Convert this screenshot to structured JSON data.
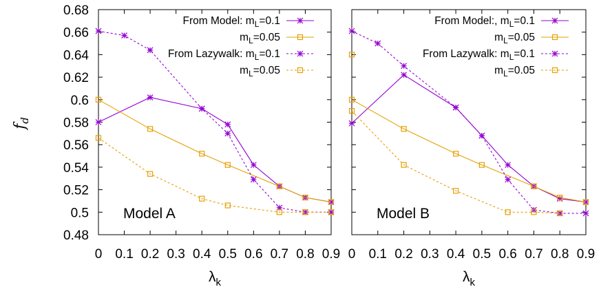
{
  "chart_data": [
    {
      "type": "line",
      "panel_label": "Model A",
      "xlabel": "λk",
      "ylabel": "f_d",
      "xlim": [
        0,
        0.9
      ],
      "ylim": [
        0.48,
        0.68
      ],
      "xticks": [
        "0",
        "0.1",
        "0.2",
        "0.3",
        "0.4",
        "0.5",
        "0.6",
        "0.7",
        "0.8",
        "0.9"
      ],
      "yticks": [
        "0.48",
        "0.5",
        "0.52",
        "0.54",
        "0.56",
        "0.58",
        "0.6",
        "0.62",
        "0.64",
        "0.66",
        "0.68"
      ],
      "grid": false,
      "legend_position": "top-right",
      "series": [
        {
          "name": "From Model: mL=0.1",
          "color": "#9400d3",
          "marker": "star",
          "dash": false,
          "x": [
            0,
            0.2,
            0.4,
            0.5,
            0.6,
            0.7,
            0.8,
            0.9
          ],
          "y": [
            0.58,
            0.602,
            0.592,
            0.578,
            0.542,
            0.523,
            0.513,
            0.509
          ]
        },
        {
          "name": "mL=0.05",
          "color": "#e69f00",
          "marker": "square",
          "dash": false,
          "x": [
            0,
            0.2,
            0.4,
            0.5,
            0.7,
            0.8,
            0.9
          ],
          "y": [
            0.6,
            0.574,
            0.552,
            0.542,
            0.523,
            0.513,
            0.509
          ]
        },
        {
          "name": "From Lazywalk: mL=0.1",
          "color": "#9400d3",
          "marker": "star",
          "dash": true,
          "x": [
            0,
            0.1,
            0.2,
            0.4,
            0.5,
            0.6,
            0.7,
            0.8,
            0.9
          ],
          "y": [
            0.661,
            0.657,
            0.644,
            0.592,
            0.57,
            0.529,
            0.504,
            0.5,
            0.5
          ]
        },
        {
          "name": "mL=0.05",
          "color": "#e69f00",
          "marker": "square",
          "dash": true,
          "x": [
            0,
            0.2,
            0.4,
            0.5,
            0.7,
            0.8,
            0.9
          ],
          "y": [
            0.566,
            0.534,
            0.512,
            0.506,
            0.5,
            0.5,
            0.5
          ]
        }
      ]
    },
    {
      "type": "line",
      "panel_label": "Model B",
      "xlabel": "λk",
      "xlim": [
        0,
        0.9
      ],
      "ylim": [
        0.48,
        0.68
      ],
      "xticks": [
        "0",
        "0.1",
        "0.2",
        "0.3",
        "0.4",
        "0.5",
        "0.6",
        "0.7",
        "0.8",
        "0.9"
      ],
      "grid": false,
      "legend_position": "top-right",
      "series": [
        {
          "name": "From Model:, mL=0.1",
          "color": "#9400d3",
          "marker": "star",
          "dash": false,
          "x": [
            0,
            0.2,
            0.4,
            0.5,
            0.6,
            0.7,
            0.8,
            0.9
          ],
          "y": [
            0.579,
            0.622,
            0.593,
            0.568,
            0.542,
            0.523,
            0.512,
            0.509
          ]
        },
        {
          "name": "mL=0.05",
          "color": "#e69f00",
          "marker": "square",
          "dash": false,
          "x": [
            0,
            0.2,
            0.4,
            0.5,
            0.7,
            0.8,
            0.9
          ],
          "y": [
            0.6,
            0.574,
            0.552,
            0.542,
            0.523,
            0.513,
            0.509
          ]
        },
        {
          "name": "From Lazywalk: mL=0.1",
          "color": "#9400d3",
          "marker": "star",
          "dash": true,
          "x": [
            0,
            0.1,
            0.2,
            0.4,
            0.5,
            0.6,
            0.7,
            0.8,
            0.9
          ],
          "y": [
            0.661,
            0.65,
            0.63,
            0.593,
            0.568,
            0.529,
            0.502,
            0.499,
            0.499
          ]
        },
        {
          "name": "mL=0.05",
          "color": "#e69f00",
          "marker": "square",
          "dash": true,
          "x": [
            0,
            0.2,
            0.4,
            0.6,
            0.7,
            0.8
          ],
          "y": [
            0.59,
            0.542,
            0.519,
            0.5,
            0.5,
            0.499
          ]
        },
        {
          "name": "",
          "color": "#e69f00",
          "marker": "square",
          "dash": false,
          "points_only": true,
          "x": [
            0
          ],
          "y": [
            0.64
          ]
        }
      ]
    }
  ]
}
